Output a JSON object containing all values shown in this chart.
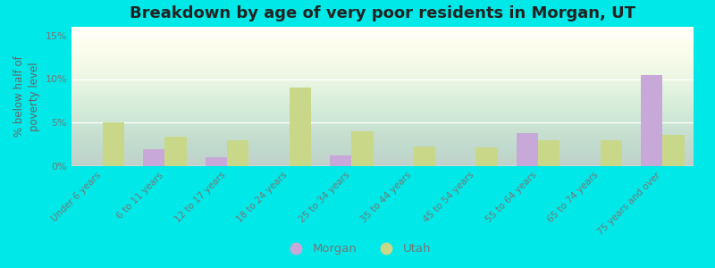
{
  "title": "Breakdown by age of very poor residents in Morgan, UT",
  "ylabel": "% below half of\npoverty level",
  "categories": [
    "Under 6 years",
    "6 to 11 years",
    "12 to 17 years",
    "18 to 24 years",
    "25 to 34 years",
    "35 to 44 years",
    "45 to 54 years",
    "55 to 64 years",
    "65 to 74 years",
    "75 years and over"
  ],
  "morgan_values": [
    0,
    2.0,
    1.0,
    0,
    1.2,
    0,
    0,
    3.8,
    0,
    10.5
  ],
  "utah_values": [
    5.0,
    3.4,
    3.0,
    9.0,
    4.0,
    2.3,
    2.2,
    3.0,
    3.0,
    3.6
  ],
  "morgan_color": "#c8a8d8",
  "utah_color": "#c8d888",
  "background_color": "#00e8e8",
  "ylim": [
    0,
    16
  ],
  "yticks": [
    0,
    5,
    10,
    15
  ],
  "ytick_labels": [
    "0%",
    "5%",
    "10%",
    "15%"
  ],
  "bar_width": 0.35,
  "title_fontsize": 13,
  "legend_labels": [
    "Morgan",
    "Utah"
  ],
  "tick_color": "#777777",
  "label_color": "#666666"
}
